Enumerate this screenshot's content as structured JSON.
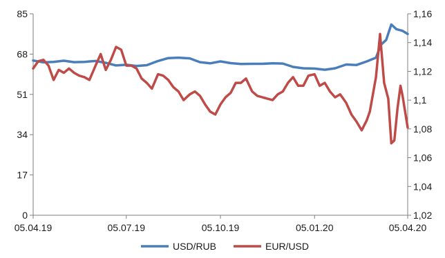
{
  "chart_data": {
    "type": "line",
    "title": "",
    "xlabel": "",
    "ylabel_left": "",
    "ylabel_right": "",
    "x_range": [
      "05.04.19",
      "05.04.20"
    ],
    "x_tick_labels": [
      "05.04.19",
      "05.07.19",
      "05.10.19",
      "05.01.20",
      "05.04.20"
    ],
    "y_left": {
      "lim": [
        0,
        85
      ],
      "ticks": [
        0,
        17,
        34,
        51,
        68,
        85
      ],
      "tick_labels": [
        "0",
        "17",
        "34",
        "51",
        "68",
        "85"
      ]
    },
    "y_right": {
      "lim": [
        1.02,
        1.16
      ],
      "ticks": [
        1.02,
        1.04,
        1.06,
        1.08,
        1.1,
        1.12,
        1.14,
        1.16
      ],
      "tick_labels": [
        "1,02",
        "1,04",
        "1,06",
        "1,08",
        "1,1",
        "1,12",
        "1,14",
        "1,16"
      ]
    },
    "grid": false,
    "legend_position": "bottom-center",
    "series": [
      {
        "name": "USD/RUB",
        "axis": "left",
        "color": "#4a7ebb",
        "points": [
          [
            "05.04.19",
            65.3
          ],
          [
            "15.04.19",
            64.5
          ],
          [
            "25.04.19",
            64.7
          ],
          [
            "05.05.19",
            65.2
          ],
          [
            "15.05.19",
            64.6
          ],
          [
            "25.05.19",
            64.7
          ],
          [
            "05.06.19",
            65.1
          ],
          [
            "15.06.19",
            64.3
          ],
          [
            "25.06.19",
            63.2
          ],
          [
            "05.07.19",
            63.5
          ],
          [
            "15.07.19",
            63.0
          ],
          [
            "25.07.19",
            63.3
          ],
          [
            "05.08.19",
            65.1
          ],
          [
            "15.08.19",
            66.3
          ],
          [
            "25.08.19",
            66.5
          ],
          [
            "05.09.19",
            66.2
          ],
          [
            "15.09.19",
            64.6
          ],
          [
            "25.09.19",
            64.1
          ],
          [
            "05.10.19",
            64.9
          ],
          [
            "15.10.19",
            64.2
          ],
          [
            "25.10.19",
            63.8
          ],
          [
            "05.11.19",
            63.9
          ],
          [
            "15.11.19",
            63.9
          ],
          [
            "25.11.19",
            64.1
          ],
          [
            "05.12.19",
            64.0
          ],
          [
            "15.12.19",
            62.6
          ],
          [
            "25.12.19",
            62.0
          ],
          [
            "05.01.20",
            61.9
          ],
          [
            "15.01.20",
            61.4
          ],
          [
            "25.01.20",
            62.0
          ],
          [
            "05.02.20",
            63.6
          ],
          [
            "15.02.20",
            63.4
          ],
          [
            "25.02.20",
            64.9
          ],
          [
            "05.03.20",
            66.5
          ],
          [
            "10.03.20",
            72.0
          ],
          [
            "15.03.20",
            74.0
          ],
          [
            "20.03.20",
            80.5
          ],
          [
            "25.03.20",
            78.5
          ],
          [
            "31.03.20",
            77.8
          ],
          [
            "05.04.20",
            76.5
          ]
        ]
      },
      {
        "name": "EUR/USD",
        "axis": "right",
        "color": "#be4b48",
        "points": [
          [
            "05.04.19",
            1.122
          ],
          [
            "10.04.19",
            1.127
          ],
          [
            "15.04.19",
            1.128
          ],
          [
            "20.04.19",
            1.124
          ],
          [
            "25.04.19",
            1.114
          ],
          [
            "30.04.19",
            1.121
          ],
          [
            "05.05.19",
            1.119
          ],
          [
            "10.05.19",
            1.122
          ],
          [
            "15.05.19",
            1.119
          ],
          [
            "20.05.19",
            1.117
          ],
          [
            "25.05.19",
            1.116
          ],
          [
            "30.05.19",
            1.114
          ],
          [
            "05.06.19",
            1.124
          ],
          [
            "10.06.19",
            1.132
          ],
          [
            "15.06.19",
            1.121
          ],
          [
            "20.06.19",
            1.128
          ],
          [
            "25.06.19",
            1.137
          ],
          [
            "30.06.19",
            1.135
          ],
          [
            "05.07.19",
            1.124
          ],
          [
            "10.07.19",
            1.124
          ],
          [
            "15.07.19",
            1.122
          ],
          [
            "20.07.19",
            1.115
          ],
          [
            "25.07.19",
            1.112
          ],
          [
            "30.07.19",
            1.108
          ],
          [
            "05.08.19",
            1.118
          ],
          [
            "10.08.19",
            1.117
          ],
          [
            "15.08.19",
            1.114
          ],
          [
            "20.08.19",
            1.109
          ],
          [
            "25.08.19",
            1.106
          ],
          [
            "30.08.19",
            1.1
          ],
          [
            "05.09.19",
            1.104
          ],
          [
            "10.09.19",
            1.106
          ],
          [
            "15.09.19",
            1.103
          ],
          [
            "20.09.19",
            1.097
          ],
          [
            "25.09.19",
            1.092
          ],
          [
            "30.09.19",
            1.09
          ],
          [
            "05.10.19",
            1.097
          ],
          [
            "10.10.19",
            1.102
          ],
          [
            "15.10.19",
            1.105
          ],
          [
            "20.10.19",
            1.112
          ],
          [
            "25.10.19",
            1.112
          ],
          [
            "30.10.19",
            1.115
          ],
          [
            "05.11.19",
            1.106
          ],
          [
            "10.11.19",
            1.103
          ],
          [
            "15.11.19",
            1.102
          ],
          [
            "20.11.19",
            1.101
          ],
          [
            "25.11.19",
            1.1
          ],
          [
            "30.11.19",
            1.104
          ],
          [
            "05.12.19",
            1.106
          ],
          [
            "10.12.19",
            1.112
          ],
          [
            "15.12.19",
            1.116
          ],
          [
            "20.12.19",
            1.11
          ],
          [
            "25.12.19",
            1.11
          ],
          [
            "30.12.19",
            1.117
          ],
          [
            "05.01.20",
            1.118
          ],
          [
            "10.01.20",
            1.11
          ],
          [
            "15.01.20",
            1.112
          ],
          [
            "20.01.20",
            1.106
          ],
          [
            "25.01.20",
            1.102
          ],
          [
            "30.01.20",
            1.104
          ],
          [
            "05.02.20",
            1.098
          ],
          [
            "10.02.20",
            1.09
          ],
          [
            "15.02.20",
            1.085
          ],
          [
            "20.02.20",
            1.079
          ],
          [
            "25.02.20",
            1.086
          ],
          [
            "28.02.20",
            1.092
          ],
          [
            "05.03.20",
            1.116
          ],
          [
            "09.03.20",
            1.146
          ],
          [
            "13.03.20",
            1.112
          ],
          [
            "17.03.20",
            1.101
          ],
          [
            "20.03.20",
            1.07
          ],
          [
            "23.03.20",
            1.072
          ],
          [
            "26.03.20",
            1.094
          ],
          [
            "29.03.20",
            1.11
          ],
          [
            "31.03.20",
            1.103
          ],
          [
            "02.04.20",
            1.094
          ],
          [
            "05.04.20",
            1.081
          ]
        ]
      }
    ]
  }
}
